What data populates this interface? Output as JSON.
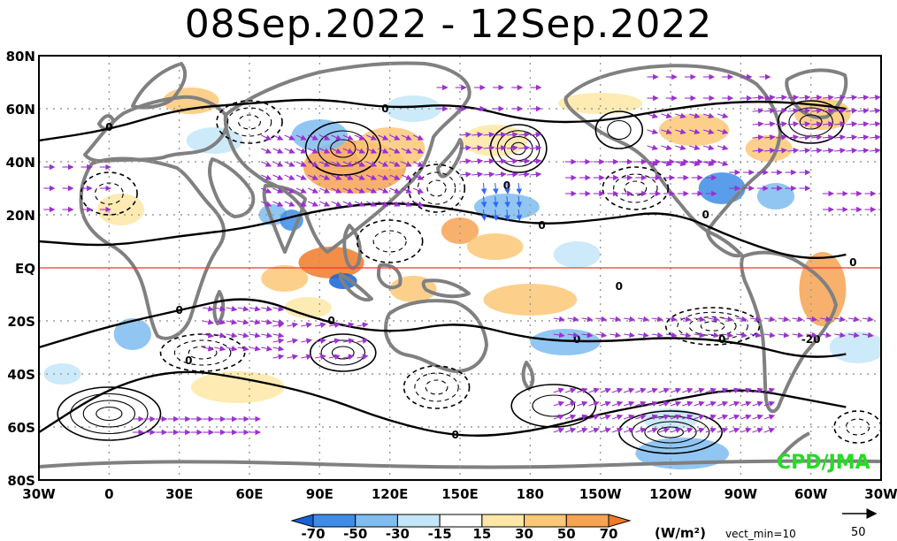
{
  "title": "08Sep.2022 - 12Sep.2022",
  "credit": "CPD/JMA",
  "equator_label": "EQ",
  "lat_labels": [
    {
      "lat": 80,
      "text": "80N"
    },
    {
      "lat": 60,
      "text": "60N"
    },
    {
      "lat": 40,
      "text": "40N"
    },
    {
      "lat": 20,
      "text": "20N"
    },
    {
      "lat": 0,
      "text": "EQ"
    },
    {
      "lat": -20,
      "text": "20S"
    },
    {
      "lat": -40,
      "text": "40S"
    },
    {
      "lat": -60,
      "text": "60S"
    },
    {
      "lat": -80,
      "text": "80S"
    }
  ],
  "lon_labels": [
    {
      "lon": -30,
      "text": "30W"
    },
    {
      "lon": 0,
      "text": "0"
    },
    {
      "lon": 30,
      "text": "30E"
    },
    {
      "lon": 60,
      "text": "60E"
    },
    {
      "lon": 90,
      "text": "90E"
    },
    {
      "lon": 120,
      "text": "120E"
    },
    {
      "lon": 150,
      "text": "150E"
    },
    {
      "lon": 180,
      "text": "180"
    },
    {
      "lon": 210,
      "text": "150W"
    },
    {
      "lon": 240,
      "text": "120W"
    },
    {
      "lon": 270,
      "text": "90W"
    },
    {
      "lon": 300,
      "text": "60W"
    },
    {
      "lon": 330,
      "text": "30W"
    }
  ],
  "colorbar": {
    "units": "(W/m²)",
    "ticks": [
      "-70",
      "-50",
      "-30",
      "-15",
      "15",
      "30",
      "50",
      "70"
    ],
    "colors": [
      "#1463d8",
      "#3d8de8",
      "#7fbcf0",
      "#c3e6f8",
      "#ffffff",
      "#fde7a6",
      "#fbc877",
      "#f6a352",
      "#f07a27"
    ]
  },
  "vector_note": "vect_min=10",
  "reference_vector": {
    "value": "50"
  },
  "contour_zero_label": "0",
  "contour_label_minus20": "-20",
  "colors": {
    "land": "#808080",
    "equator": "#ff3333",
    "vector": "#9b30d0",
    "vector_blue": "#3366ff",
    "grid": "#9a9a9a"
  },
  "anomaly_regions": [
    {
      "lon": 105,
      "lat": 38,
      "rx": 22,
      "ry": 10,
      "level": 7
    },
    {
      "lon": 120,
      "lat": 45,
      "rx": 15,
      "ry": 8,
      "level": 6
    },
    {
      "lon": 95,
      "lat": 2,
      "rx": 14,
      "ry": 6,
      "level": 8
    },
    {
      "lon": 75,
      "lat": -4,
      "rx": 10,
      "ry": 5,
      "level": 6
    },
    {
      "lon": 150,
      "lat": 14,
      "rx": 8,
      "ry": 5,
      "level": 7
    },
    {
      "lon": 165,
      "lat": 8,
      "rx": 12,
      "ry": 5,
      "level": 6
    },
    {
      "lon": 180,
      "lat": -12,
      "rx": 20,
      "ry": 6,
      "level": 6
    },
    {
      "lon": 130,
      "lat": -8,
      "rx": 10,
      "ry": 5,
      "level": 6
    },
    {
      "lon": 305,
      "lat": -8,
      "rx": 10,
      "ry": 14,
      "level": 7
    },
    {
      "lon": 305,
      "lat": 58,
      "rx": 12,
      "ry": 6,
      "level": 6
    },
    {
      "lon": 5,
      "lat": 22,
      "rx": 10,
      "ry": 6,
      "level": 5
    },
    {
      "lon": 35,
      "lat": 63,
      "rx": 12,
      "ry": 5,
      "level": 6
    },
    {
      "lon": 250,
      "lat": 52,
      "rx": 15,
      "ry": 6,
      "level": 6
    },
    {
      "lon": 282,
      "lat": 45,
      "rx": 10,
      "ry": 5,
      "level": 6
    },
    {
      "lon": 210,
      "lat": 62,
      "rx": 18,
      "ry": 4,
      "level": 5
    },
    {
      "lon": 55,
      "lat": -45,
      "rx": 20,
      "ry": 6,
      "level": 5
    },
    {
      "lon": 165,
      "lat": 48,
      "rx": 14,
      "ry": 6,
      "level": 5
    },
    {
      "lon": 85,
      "lat": -15,
      "rx": 10,
      "ry": 4,
      "level": 5
    },
    {
      "lon": 70,
      "lat": 20,
      "rx": 6,
      "ry": 4,
      "level": 2
    },
    {
      "lon": 78,
      "lat": 18,
      "rx": 5,
      "ry": 4,
      "level": 1
    },
    {
      "lon": 100,
      "lat": -5,
      "rx": 6,
      "ry": 3,
      "level": 0
    },
    {
      "lon": 90,
      "lat": 50,
      "rx": 12,
      "ry": 6,
      "level": 2
    },
    {
      "lon": 170,
      "lat": 23,
      "rx": 14,
      "ry": 5,
      "level": 2
    },
    {
      "lon": 195,
      "lat": -28,
      "rx": 15,
      "ry": 5,
      "level": 2
    },
    {
      "lon": 262,
      "lat": 30,
      "rx": 10,
      "ry": 6,
      "level": 1
    },
    {
      "lon": 285,
      "lat": 27,
      "rx": 8,
      "ry": 5,
      "level": 2
    },
    {
      "lon": 245,
      "lat": -70,
      "rx": 20,
      "ry": 6,
      "level": 2
    },
    {
      "lon": 240,
      "lat": -57,
      "rx": 12,
      "ry": 4,
      "level": 3
    },
    {
      "lon": 10,
      "lat": -25,
      "rx": 8,
      "ry": 6,
      "level": 2
    },
    {
      "lon": -20,
      "lat": -40,
      "rx": 8,
      "ry": 4,
      "level": 3
    },
    {
      "lon": 200,
      "lat": 5,
      "rx": 10,
      "ry": 5,
      "level": 3
    },
    {
      "lon": 320,
      "lat": -30,
      "rx": 12,
      "ry": 6,
      "level": 3
    },
    {
      "lon": 45,
      "lat": 48,
      "rx": 12,
      "ry": 5,
      "level": 3
    },
    {
      "lon": 130,
      "lat": 60,
      "rx": 12,
      "ry": 5,
      "level": 3
    }
  ],
  "vector_fields": [
    {
      "lon0": 65,
      "lon1": 130,
      "lat0": 25,
      "lat1": 52,
      "u": 1,
      "v": -0.45,
      "step": 5
    },
    {
      "lon0": 150,
      "lon1": 180,
      "lat0": 35,
      "lat1": 50,
      "u": 1,
      "v": 0.1,
      "step": 5
    },
    {
      "lon0": 160,
      "lon1": 178,
      "lat0": 22,
      "lat1": 34,
      "u": 0.1,
      "v": -1,
      "step": 5,
      "blue": true
    },
    {
      "lon0": 195,
      "lon1": 255,
      "lat0": 28,
      "lat1": 42,
      "u": 1,
      "v": 0,
      "step": 6
    },
    {
      "lon0": 230,
      "lon1": 260,
      "lat0": 40,
      "lat1": 58,
      "u": 1,
      "v": -0.3,
      "step": 6
    },
    {
      "lon0": 275,
      "lon1": 330,
      "lat0": 44,
      "lat1": 66,
      "u": 1,
      "v": 0.1,
      "step": 5
    },
    {
      "lon0": 265,
      "lon1": 300,
      "lat0": 30,
      "lat1": 38,
      "u": 1,
      "v": 0,
      "step": 6
    },
    {
      "lon0": 40,
      "lon1": 70,
      "lat0": -30,
      "lat1": -14,
      "u": 1,
      "v": -0.2,
      "step": 5
    },
    {
      "lon0": 70,
      "lon1": 110,
      "lat0": -34,
      "lat1": -22,
      "u": 1,
      "v": 0.2,
      "step": 6
    },
    {
      "lon0": 190,
      "lon1": 325,
      "lat0": -25,
      "lat1": -14,
      "u": 1,
      "v": -0.15,
      "step": 6
    },
    {
      "lon0": 10,
      "lon1": 60,
      "lat0": -62,
      "lat1": -56,
      "u": 1,
      "v": 0,
      "step": 5
    },
    {
      "lon0": 190,
      "lon1": 280,
      "lat0": -62,
      "lat1": -45,
      "u": 1,
      "v": 0.35,
      "step": 5
    },
    {
      "lon0": 140,
      "lon1": 180,
      "lat0": 60,
      "lat1": 72,
      "u": 1,
      "v": 0,
      "step": 8
    },
    {
      "lon0": 230,
      "lon1": 280,
      "lat0": 64,
      "lat1": 72,
      "u": 1,
      "v": 0,
      "step": 8
    },
    {
      "lon0": -28,
      "lon1": 0,
      "lat0": 22,
      "lat1": 40,
      "u": 1,
      "v": 0,
      "step": 8
    },
    {
      "lon0": 305,
      "lon1": 330,
      "lat0": 22,
      "lat1": 32,
      "u": 1,
      "v": 0,
      "step": 6
    }
  ],
  "contours_solid": [
    {
      "lon": 0,
      "lat": -55,
      "rx": 22,
      "ry": 10,
      "n": 4
    },
    {
      "lon": 100,
      "lat": -32,
      "rx": 14,
      "ry": 7,
      "n": 3
    },
    {
      "lon": 240,
      "lat": -62,
      "rx": 22,
      "ry": 8,
      "n": 4
    },
    {
      "lon": 175,
      "lat": 45,
      "rx": 12,
      "ry": 9,
      "n": 4
    },
    {
      "lon": 100,
      "lat": 45,
      "rx": 16,
      "ry": 10,
      "n": 3
    },
    {
      "lon": 300,
      "lat": 55,
      "rx": 14,
      "ry": 8,
      "n": 3
    },
    {
      "lon": 218,
      "lat": 52,
      "rx": 10,
      "ry": 7,
      "n": 2
    },
    {
      "lon": 190,
      "lat": -52,
      "rx": 18,
      "ry": 8,
      "n": 2
    }
  ],
  "contours_dashed": [
    {
      "lon": 258,
      "lat": -22,
      "rx": 20,
      "ry": 7,
      "n": 4
    },
    {
      "lon": 40,
      "lat": -32,
      "rx": 18,
      "ry": 7,
      "n": 3
    },
    {
      "lon": 140,
      "lat": -45,
      "rx": 14,
      "ry": 8,
      "n": 3
    },
    {
      "lon": 140,
      "lat": 30,
      "rx": 12,
      "ry": 9,
      "n": 3
    },
    {
      "lon": 225,
      "lat": 30,
      "rx": 14,
      "ry": 8,
      "n": 3
    },
    {
      "lon": 320,
      "lat": -60,
      "rx": 10,
      "ry": 6,
      "n": 2
    },
    {
      "lon": 60,
      "lat": 55,
      "rx": 14,
      "ry": 8,
      "n": 3
    },
    {
      "lon": 0,
      "lat": 28,
      "rx": 12,
      "ry": 8,
      "n": 2
    },
    {
      "lon": 120,
      "lat": 10,
      "rx": 14,
      "ry": 8,
      "n": 2
    }
  ],
  "zero_contour_labels": [
    {
      "lon": 0,
      "lat": 53
    },
    {
      "lon": 118,
      "lat": 60
    },
    {
      "lon": 170,
      "lat": 31
    },
    {
      "lon": 185,
      "lat": 16
    },
    {
      "lon": 255,
      "lat": 20
    },
    {
      "lon": 318,
      "lat": 2
    },
    {
      "lon": 218,
      "lat": -7
    },
    {
      "lon": 200,
      "lat": -27
    },
    {
      "lon": 30,
      "lat": -16
    },
    {
      "lon": 95,
      "lat": -20
    },
    {
      "lon": 34,
      "lat": -35
    },
    {
      "lon": 262,
      "lat": -27
    },
    {
      "lon": 148,
      "lat": -63
    }
  ],
  "minus20_label": {
    "lon": 300,
    "lat": -27
  }
}
